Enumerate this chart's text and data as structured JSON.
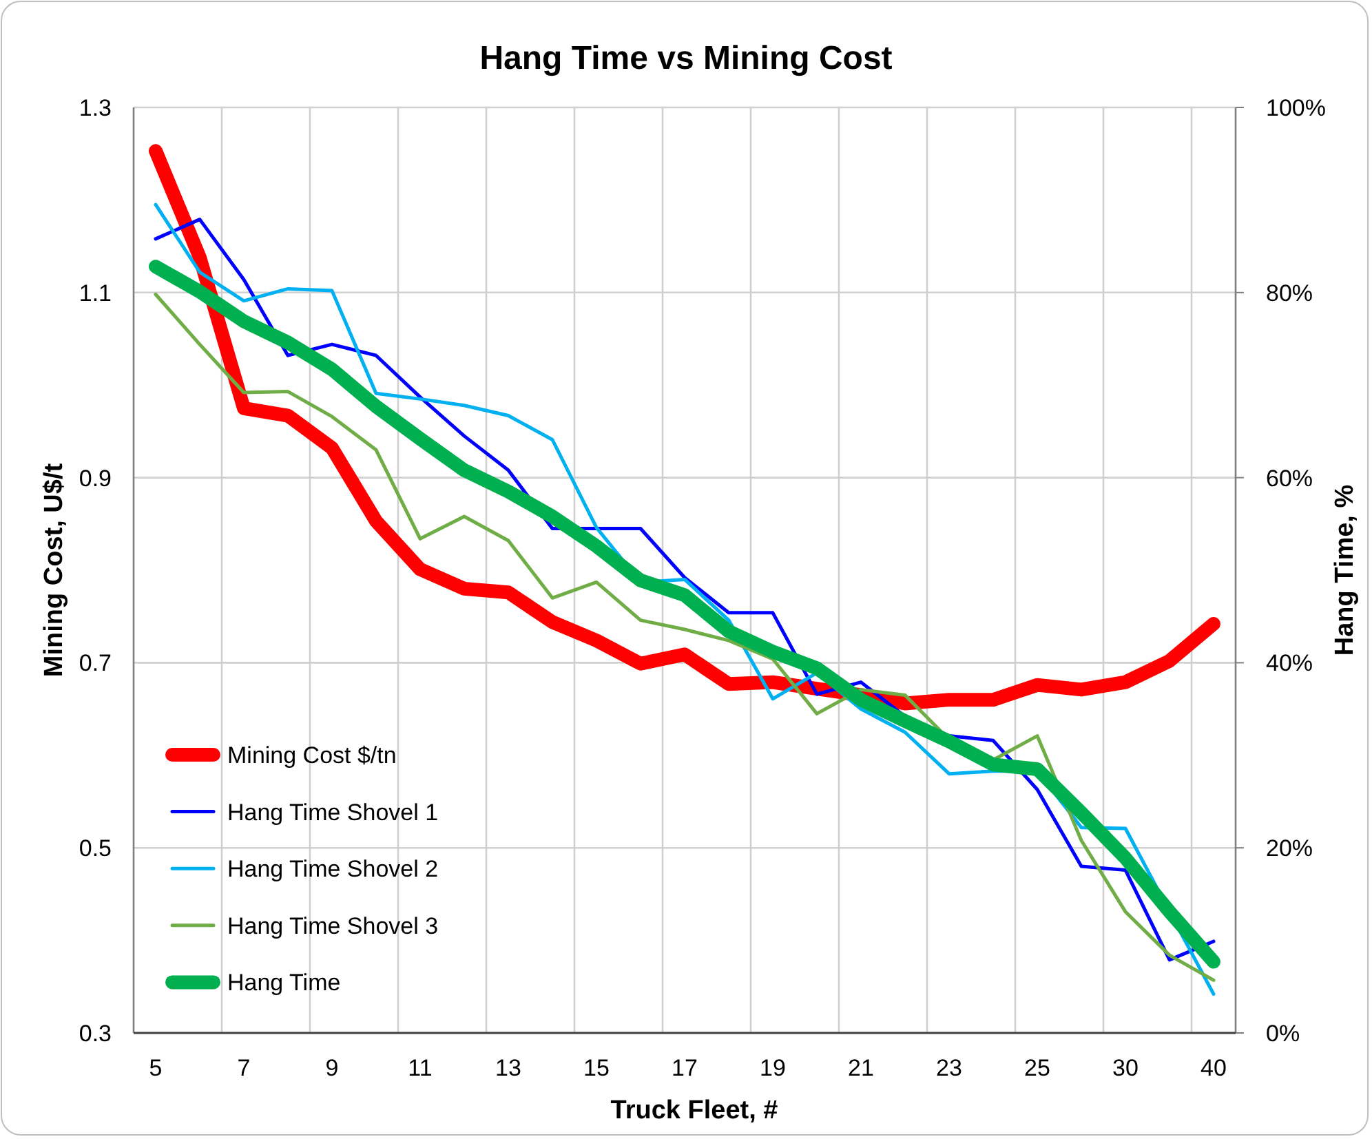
{
  "chart_data": {
    "type": "line",
    "title": "Hang Time vs Mining Cost",
    "xlabel": "Truck Fleet, #",
    "ylabel": "Mining Cost, U$/t",
    "y2label": "Hang Time, %",
    "categories": [
      "5",
      null,
      "7",
      null,
      "9",
      null,
      "11",
      null,
      "13",
      null,
      "15",
      null,
      "17",
      null,
      "19",
      null,
      "21",
      null,
      "23",
      null,
      "25",
      null,
      "30",
      null,
      "40"
    ],
    "ylim": [
      0.3,
      1.3
    ],
    "yticks": [
      0.3,
      0.5,
      0.7,
      0.9,
      1.1,
      1.3
    ],
    "y2lim": [
      0,
      100
    ],
    "y2ticks": [
      {
        "value": 0,
        "label": "0%"
      },
      {
        "value": 20,
        "label": "20%"
      },
      {
        "value": 40,
        "label": "40%"
      },
      {
        "value": 60,
        "label": "60%"
      },
      {
        "value": 80,
        "label": "80%"
      },
      {
        "value": 100,
        "label": "100%"
      }
    ],
    "grid": true,
    "legend": "bottom left",
    "marker": "none",
    "line_style": "solid",
    "series": [
      {
        "name": "Mining Cost $/tn",
        "color": "#ff0000",
        "values": [
          1.253,
          1.138,
          0.975,
          0.967,
          0.932,
          0.853,
          0.801,
          0.78,
          0.776,
          0.744,
          0.724,
          0.699,
          0.709,
          0.677,
          0.679,
          0.672,
          0.665,
          0.656,
          0.66,
          0.66,
          0.676,
          0.671,
          0.679,
          0.702,
          0.742
        ]
      },
      {
        "name": "Hang Time Shovel 1",
        "color": "#0000ff",
        "axis": "y2",
        "values": [
          85.8,
          87.9,
          81.4,
          73.2,
          74.4,
          73.2,
          68.7,
          64.5,
          60.8,
          54.5,
          54.5,
          54.5,
          49.2,
          45.4,
          45.4,
          36.6,
          37.9,
          34.2,
          32.1,
          31.6,
          26.3,
          18.0,
          17.6,
          7.9,
          9.9
        ]
      },
      {
        "name": "Hang Time Shovel 2",
        "color": "#00b0f0",
        "axis": "y2",
        "values": [
          89.5,
          82.2,
          79.1,
          80.4,
          80.2,
          69.1,
          68.5,
          67.8,
          66.7,
          64.1,
          54.6,
          48.7,
          49.0,
          44.6,
          36.1,
          38.9,
          35.0,
          32.5,
          28.0,
          28.3,
          28.3,
          22.2,
          22.1,
          13.1,
          4.2
        ]
      },
      {
        "name": "Hang Time Shovel 3",
        "color": "#70ad47",
        "axis": "y2",
        "values": [
          79.8,
          74.4,
          69.2,
          69.3,
          66.6,
          63.0,
          53.4,
          55.8,
          53.2,
          47.0,
          48.7,
          44.6,
          43.6,
          42.4,
          40.4,
          34.5,
          37.1,
          36.5,
          31.7,
          29.5,
          32.1,
          20.8,
          13.1,
          8.4,
          5.7
        ]
      },
      {
        "name": "Hang Time",
        "color": "#00b050",
        "axis": "y2",
        "values": [
          82.8,
          80.1,
          76.9,
          74.6,
          71.7,
          67.7,
          64.2,
          60.8,
          58.5,
          55.8,
          52.6,
          48.9,
          47.3,
          43.4,
          41.2,
          39.4,
          36.0,
          33.7,
          31.5,
          29.0,
          28.5,
          23.8,
          18.9,
          13.1,
          7.7
        ]
      }
    ]
  }
}
